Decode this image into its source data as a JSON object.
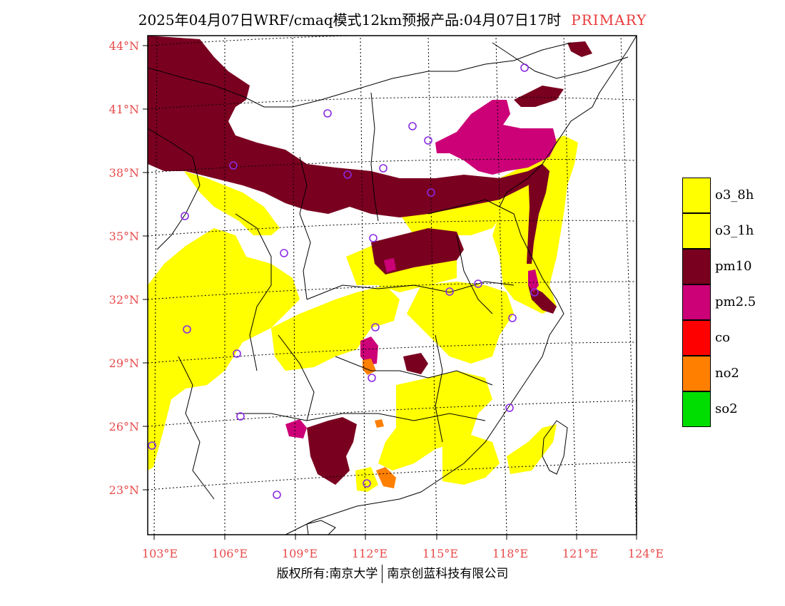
{
  "title": {
    "text": "2025年04月07日WRF/cmaq模式12km预报产品:04月07日17时",
    "tag": "PRIMARY",
    "tag_color": "#e83b3b"
  },
  "axes": {
    "lat_labels": [
      "44°N",
      "41°N",
      "38°N",
      "35°N",
      "32°N",
      "29°N",
      "26°N",
      "23°N"
    ],
    "lon_labels": [
      "103°E",
      "106°E",
      "109°E",
      "112°E",
      "115°E",
      "118°E",
      "121°E",
      "124°E"
    ],
    "label_color": "#e84a4a"
  },
  "legend": [
    {
      "label": "o3_8h",
      "color": "#ffff00"
    },
    {
      "label": "o3_1h",
      "color": "#ffff00"
    },
    {
      "label": "pm10",
      "color": "#7a0020"
    },
    {
      "label": "pm2.5",
      "color": "#cc0077"
    },
    {
      "label": "co",
      "color": "#ff0000"
    },
    {
      "label": "no2",
      "color": "#ff7f00"
    },
    {
      "label": "so2",
      "color": "#00dd00"
    }
  ],
  "stations": {
    "symbol": "circle",
    "color": "#8a2be2"
  },
  "footer": {
    "left": "版权所有:南京大学",
    "right": "南京创蓝科技有限公司"
  }
}
